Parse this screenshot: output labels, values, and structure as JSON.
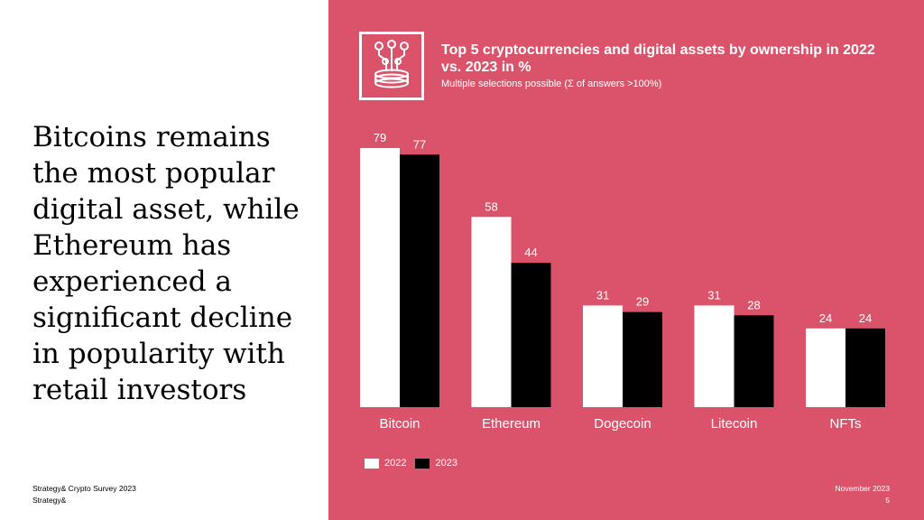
{
  "headline": "Bitcoins remains the most popular digital asset, while Ethereum has experienced a significant decline in popularity with retail investors",
  "footer": {
    "source_line": "Strategy& Crypto Survey 2023",
    "brand": "Strategy&",
    "date": "November 2023",
    "page": "5"
  },
  "colors": {
    "panel": "#db536a",
    "series_2022": "#ffffff",
    "series_2023": "#000000"
  },
  "logo_icon": "crypto-coin-stack-icon",
  "chart_data": {
    "type": "bar",
    "title": "Top 5 cryptocurrencies and digital assets by ownership in 2022 vs. 2023 in %",
    "subtitle": "Multiple selections possible (Σ of answers >100%)",
    "categories": [
      "Bitcoin",
      "Ethereum",
      "Dogecoin",
      "Litecoin",
      "NFTs"
    ],
    "series": [
      {
        "name": "2022",
        "values": [
          79,
          58,
          31,
          31,
          24
        ],
        "color": "#ffffff"
      },
      {
        "name": "2023",
        "values": [
          77,
          44,
          29,
          28,
          24
        ],
        "color": "#000000"
      }
    ],
    "ylim": [
      0,
      79
    ],
    "grid": false,
    "legend_position": "bottom-left"
  }
}
